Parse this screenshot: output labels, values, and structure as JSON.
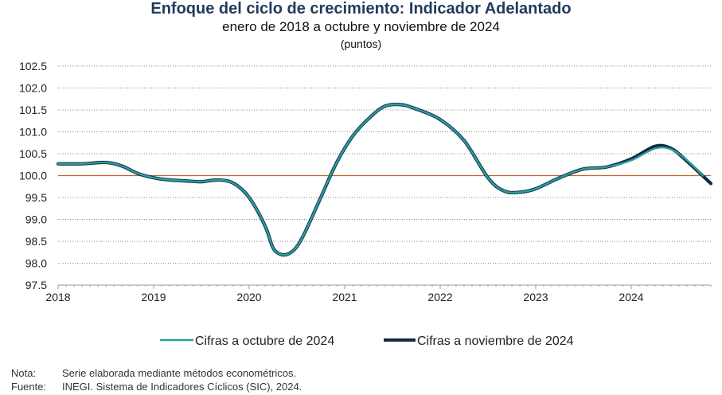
{
  "title": "Enfoque del ciclo de crecimiento: Indicador Adelantado",
  "subtitle": "enero de 2018 a octubre y noviembre de 2024",
  "units": "(puntos)",
  "chart_data": {
    "type": "line",
    "title": "Enfoque del ciclo de crecimiento: Indicador Adelantado",
    "subtitle": "enero de 2018 a octubre y noviembre de 2024",
    "ylabel": "(puntos)",
    "ylim": [
      97.5,
      102.5
    ],
    "yticks": [
      "102.5",
      "102.0",
      "101.5",
      "101.0",
      "100.5",
      "100.0",
      "99.5",
      "99.0",
      "98.5",
      "98.0",
      "97.5"
    ],
    "xlim": [
      "2018-01",
      "2024-11"
    ],
    "xticks": [
      "2018",
      "2019",
      "2020",
      "2021",
      "2022",
      "2023",
      "2024"
    ],
    "grid": true,
    "reference_line": 100.0,
    "legend_position": "bottom",
    "series": [
      {
        "name": "Cifras a octubre de 2024",
        "color": "#2a9d9a",
        "points": [
          [
            "2018-01",
            100.27
          ],
          [
            "2018-04",
            100.27
          ],
          [
            "2018-07",
            100.3
          ],
          [
            "2018-09",
            100.22
          ],
          [
            "2018-11",
            100.05
          ],
          [
            "2019-01",
            99.95
          ],
          [
            "2019-03",
            99.9
          ],
          [
            "2019-05",
            99.88
          ],
          [
            "2019-07",
            99.86
          ],
          [
            "2019-09",
            99.9
          ],
          [
            "2019-11",
            99.83
          ],
          [
            "2020-01",
            99.5
          ],
          [
            "2020-03",
            98.85
          ],
          [
            "2020-04",
            98.35
          ],
          [
            "2020-05",
            98.2
          ],
          [
            "2020-06",
            98.22
          ],
          [
            "2020-07",
            98.38
          ],
          [
            "2020-08",
            98.7
          ],
          [
            "2020-10",
            99.5
          ],
          [
            "2020-12",
            100.3
          ],
          [
            "2021-02",
            100.9
          ],
          [
            "2021-04",
            101.3
          ],
          [
            "2021-06",
            101.58
          ],
          [
            "2021-08",
            101.62
          ],
          [
            "2021-10",
            101.52
          ],
          [
            "2022-01",
            101.28
          ],
          [
            "2022-04",
            100.8
          ],
          [
            "2022-07",
            99.95
          ],
          [
            "2022-09",
            99.65
          ],
          [
            "2022-11",
            99.62
          ],
          [
            "2023-01",
            99.7
          ],
          [
            "2023-04",
            99.95
          ],
          [
            "2023-07",
            100.15
          ],
          [
            "2023-10",
            100.2
          ],
          [
            "2024-01",
            100.35
          ],
          [
            "2024-04",
            100.62
          ],
          [
            "2024-06",
            100.6
          ],
          [
            "2024-08",
            100.35
          ],
          [
            "2024-10",
            100.0
          ]
        ]
      },
      {
        "name": "Cifras a noviembre de 2024",
        "color": "#0f2a44",
        "points": [
          [
            "2018-01",
            100.27
          ],
          [
            "2018-04",
            100.27
          ],
          [
            "2018-07",
            100.3
          ],
          [
            "2018-09",
            100.22
          ],
          [
            "2018-11",
            100.05
          ],
          [
            "2019-01",
            99.95
          ],
          [
            "2019-03",
            99.9
          ],
          [
            "2019-05",
            99.88
          ],
          [
            "2019-07",
            99.86
          ],
          [
            "2019-09",
            99.9
          ],
          [
            "2019-11",
            99.83
          ],
          [
            "2020-01",
            99.5
          ],
          [
            "2020-03",
            98.85
          ],
          [
            "2020-04",
            98.35
          ],
          [
            "2020-05",
            98.2
          ],
          [
            "2020-06",
            98.22
          ],
          [
            "2020-07",
            98.38
          ],
          [
            "2020-08",
            98.7
          ],
          [
            "2020-10",
            99.5
          ],
          [
            "2020-12",
            100.3
          ],
          [
            "2021-02",
            100.9
          ],
          [
            "2021-04",
            101.3
          ],
          [
            "2021-06",
            101.58
          ],
          [
            "2021-08",
            101.62
          ],
          [
            "2021-10",
            101.52
          ],
          [
            "2022-01",
            101.28
          ],
          [
            "2022-04",
            100.8
          ],
          [
            "2022-07",
            99.95
          ],
          [
            "2022-09",
            99.65
          ],
          [
            "2022-11",
            99.62
          ],
          [
            "2023-01",
            99.7
          ],
          [
            "2023-04",
            99.95
          ],
          [
            "2023-07",
            100.15
          ],
          [
            "2023-10",
            100.2
          ],
          [
            "2024-01",
            100.38
          ],
          [
            "2024-04",
            100.67
          ],
          [
            "2024-06",
            100.62
          ],
          [
            "2024-08",
            100.33
          ],
          [
            "2024-11",
            99.82
          ]
        ]
      }
    ]
  },
  "legend": {
    "october_label": "Cifras a octubre de 2024",
    "november_label": "Cifras a noviembre de 2024"
  },
  "notes": {
    "nota_label": "Nota:",
    "nota_text": "Serie elaborada mediante métodos econométricos.",
    "fuente_label": "Fuente:",
    "fuente_text": "INEGI. Sistema de Indicadores Cíclicos (SIC), 2024."
  }
}
